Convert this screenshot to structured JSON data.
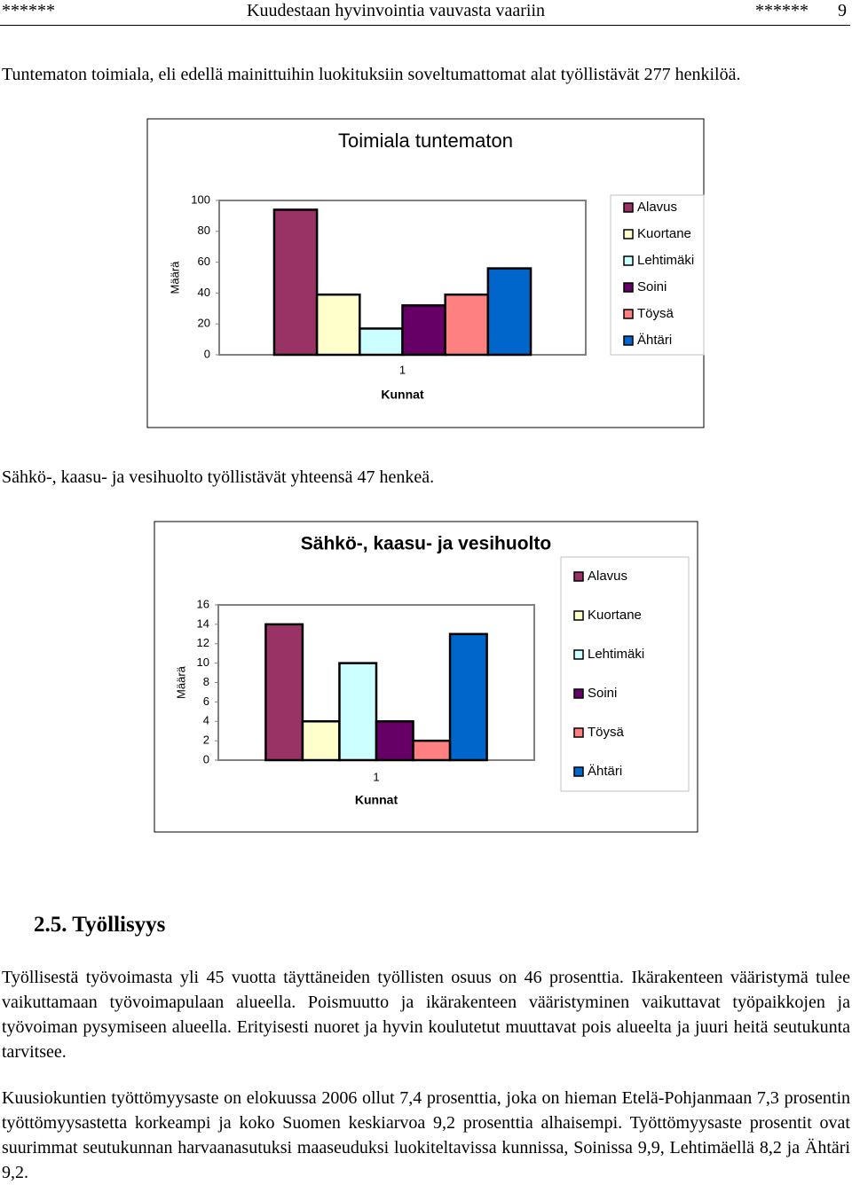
{
  "header": {
    "left": "******",
    "title": "Kuudestaan hyvinvointia vauvasta vaariin",
    "right": "******",
    "page": "9"
  },
  "paragraphs": [
    "Tuntematon toimiala, eli edellä mainittuihin luokituksiin soveltumattomat alat työllistävät 277 henkilöä.",
    "Sähkö-, kaasu- ja vesihuolto työllistävät yhteensä 47 henkeä."
  ],
  "section": {
    "heading": "2.5. Työllisyys",
    "paragraphs": [
      "Työllisestä työvoimasta yli 45 vuotta täyttäneiden työllisten osuus on 46 prosenttia. Ikärakenteen vääristymä tulee vaikuttamaan työvoimapulaan alueella. Poismuutto ja ikärakenteen vääristyminen vaikuttavat työpaikkojen ja työvoiman pysymiseen alueella. Erityisesti nuoret ja hyvin koulutetut muuttavat pois alueelta ja juuri heitä seutukunta tarvitsee.",
      "Kuusiokuntien työttömyysaste on elokuussa 2006 ollut 7,4 prosenttia, joka on hieman Etelä-Pohjanmaan 7,3 prosentin työttömyysastetta korkeampi ja koko Suomen keskiarvoa 9,2 prosenttia alhaisempi. Työttömyysaste prosentit ovat suurimmat seutukunnan harvaanasutuksi maaseuduksi luokiteltavissa kunnissa, Soinissa 9,9, Lehtimäellä 8,2 ja Ähtäri 9,2."
    ]
  },
  "chart_data": [
    {
      "type": "bar",
      "title": "Toimiala tuntematon",
      "x_label": "Kunnat",
      "y_label": "Määrä",
      "categories": [
        "1"
      ],
      "series": [
        {
          "name": "Alavus",
          "color": "#993366",
          "values": [
            94
          ]
        },
        {
          "name": "Kuortane",
          "color": "#ffffcc",
          "values": [
            39
          ]
        },
        {
          "name": "Lehtimäki",
          "color": "#ccffff",
          "values": [
            17
          ]
        },
        {
          "name": "Soini",
          "color": "#660066",
          "values": [
            32
          ]
        },
        {
          "name": "Töysä",
          "color": "#ff8080",
          "values": [
            39
          ]
        },
        {
          "name": "Ähtäri",
          "color": "#0066cc",
          "values": [
            56
          ]
        }
      ],
      "ylim": [
        0,
        100
      ],
      "yticks": [
        0,
        20,
        40,
        60,
        80,
        100
      ],
      "grid": false,
      "legend": "right"
    },
    {
      "type": "bar",
      "title": "Sähkö-, kaasu- ja vesihuolto",
      "x_label": "Kunnat",
      "y_label": "Määrä",
      "categories": [
        "1"
      ],
      "series": [
        {
          "name": "Alavus",
          "color": "#993366",
          "values": [
            14
          ]
        },
        {
          "name": "Kuortane",
          "color": "#ffffcc",
          "values": [
            4
          ]
        },
        {
          "name": "Lehtimäki",
          "color": "#ccffff",
          "values": [
            10
          ]
        },
        {
          "name": "Soini",
          "color": "#660066",
          "values": [
            4
          ]
        },
        {
          "name": "Töysä",
          "color": "#ff8080",
          "values": [
            2
          ]
        },
        {
          "name": "Ähtäri",
          "color": "#0066cc",
          "values": [
            13
          ]
        }
      ],
      "ylim": [
        0,
        16
      ],
      "yticks": [
        0,
        2,
        4,
        6,
        8,
        10,
        12,
        14,
        16
      ],
      "grid": false,
      "legend": "right"
    }
  ]
}
